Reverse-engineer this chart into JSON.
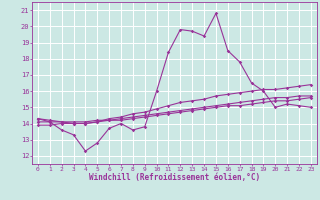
{
  "xlabel": "Windchill (Refroidissement éolien,°C)",
  "background_color": "#cce8e4",
  "grid_color": "#ffffff",
  "line_color": "#993399",
  "xlim": [
    -0.5,
    23.5
  ],
  "ylim": [
    11.5,
    21.5
  ],
  "yticks": [
    12,
    13,
    14,
    15,
    16,
    17,
    18,
    19,
    20,
    21
  ],
  "xticks": [
    0,
    1,
    2,
    3,
    4,
    5,
    6,
    7,
    8,
    9,
    10,
    11,
    12,
    13,
    14,
    15,
    16,
    17,
    18,
    19,
    20,
    21,
    22,
    23
  ],
  "hours": [
    0,
    1,
    2,
    3,
    4,
    5,
    6,
    7,
    8,
    9,
    10,
    11,
    12,
    13,
    14,
    15,
    16,
    17,
    18,
    19,
    20,
    21,
    22,
    23
  ],
  "line1": [
    14.3,
    14.1,
    13.6,
    13.3,
    12.3,
    12.8,
    13.7,
    14.0,
    13.6,
    13.8,
    16.0,
    18.4,
    19.8,
    19.7,
    19.4,
    20.8,
    18.5,
    17.8,
    16.5,
    16.0,
    15.0,
    15.2,
    15.1,
    15.0
  ],
  "line2": [
    14.3,
    14.2,
    14.1,
    14.0,
    14.0,
    14.1,
    14.3,
    14.4,
    14.6,
    14.7,
    14.9,
    15.1,
    15.3,
    15.4,
    15.5,
    15.7,
    15.8,
    15.9,
    16.0,
    16.1,
    16.1,
    16.2,
    16.3,
    16.4
  ],
  "line3": [
    14.1,
    14.1,
    14.1,
    14.1,
    14.1,
    14.2,
    14.2,
    14.3,
    14.4,
    14.5,
    14.6,
    14.7,
    14.8,
    14.9,
    15.0,
    15.1,
    15.2,
    15.3,
    15.4,
    15.5,
    15.6,
    15.6,
    15.7,
    15.7
  ],
  "line4": [
    13.9,
    13.9,
    14.0,
    14.0,
    14.0,
    14.1,
    14.2,
    14.2,
    14.3,
    14.4,
    14.5,
    14.6,
    14.7,
    14.8,
    14.9,
    15.0,
    15.1,
    15.1,
    15.2,
    15.3,
    15.4,
    15.4,
    15.5,
    15.6
  ]
}
